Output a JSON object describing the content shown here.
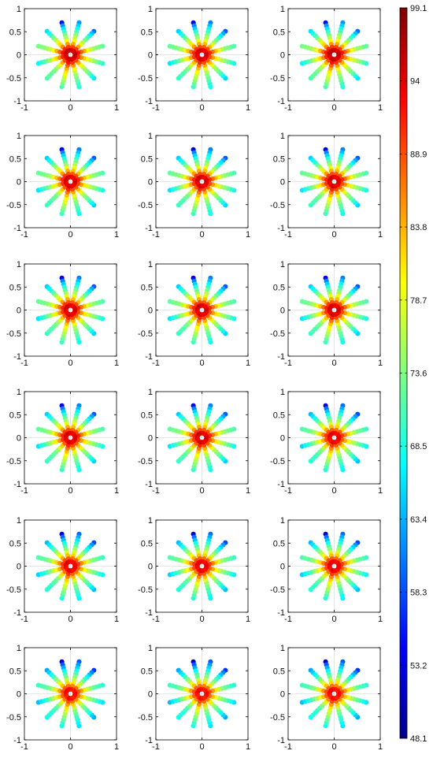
{
  "chart_data": {
    "type": "scatter",
    "layout": {
      "rows": 6,
      "cols": 3
    },
    "panel_axes": {
      "xlim": [
        -1,
        1
      ],
      "ylim": [
        -1,
        1
      ],
      "xticks": [
        -1,
        0,
        1
      ],
      "xtick_labels": [
        "-1",
        "0",
        "1"
      ],
      "yticks": [
        -1,
        -0.5,
        0,
        0.5,
        1
      ],
      "ytick_labels": [
        "-1",
        "-0.5",
        "0",
        "0.5",
        "1"
      ],
      "grid": "zero-lines"
    },
    "arms": {
      "count": 12,
      "rotation_deg": 165,
      "points_per_arm": 10,
      "radius_range": [
        0.1,
        0.72
      ]
    },
    "arm_values": [
      [
        96,
        92,
        88,
        84,
        80,
        77,
        75,
        74,
        74,
        73
      ],
      [
        95,
        91,
        86,
        82,
        79,
        76,
        73,
        71,
        69,
        67
      ],
      [
        94,
        89,
        84,
        79,
        76,
        74,
        73,
        72,
        72,
        71
      ],
      [
        96,
        92,
        88,
        84,
        81,
        79,
        77,
        75,
        73,
        71
      ],
      [
        95,
        90,
        85,
        80,
        77,
        75,
        73,
        72,
        70,
        69
      ],
      [
        94,
        89,
        84,
        80,
        77,
        75,
        73,
        71,
        68,
        66
      ],
      [
        95,
        90,
        86,
        82,
        79,
        77,
        75,
        73,
        71,
        69
      ],
      [
        96,
        92,
        88,
        84,
        80,
        77,
        75,
        74,
        73,
        72
      ],
      [
        95,
        90,
        84,
        79,
        76,
        73,
        70,
        67,
        64,
        60
      ],
      [
        94,
        89,
        84,
        80,
        77,
        74,
        71,
        68,
        65,
        62
      ],
      [
        95,
        90,
        85,
        80,
        76,
        73,
        70,
        66,
        62,
        55
      ],
      [
        96,
        91,
        86,
        82,
        79,
        76,
        73,
        70,
        68,
        66
      ]
    ],
    "panel_offsets": [
      [
        0,
        -1,
        0
      ],
      [
        -1,
        -1,
        -1
      ],
      [
        -1,
        -1,
        -1
      ],
      [
        -1,
        -1,
        -2
      ],
      [
        -2,
        -2,
        -2
      ],
      [
        -3,
        -3,
        -3
      ]
    ],
    "colorbar": {
      "colormap": "jet",
      "range": [
        48.1,
        99.1
      ],
      "ticks": [
        48.1,
        53.2,
        58.3,
        63.4,
        68.5,
        73.6,
        78.7,
        83.8,
        88.9,
        94,
        99.1
      ],
      "tick_labels": [
        "48.1",
        "53.2",
        "58.3",
        "63.4",
        "68.5",
        "73.6",
        "78.7",
        "83.8",
        "88.9",
        "94",
        "99.1"
      ]
    }
  }
}
